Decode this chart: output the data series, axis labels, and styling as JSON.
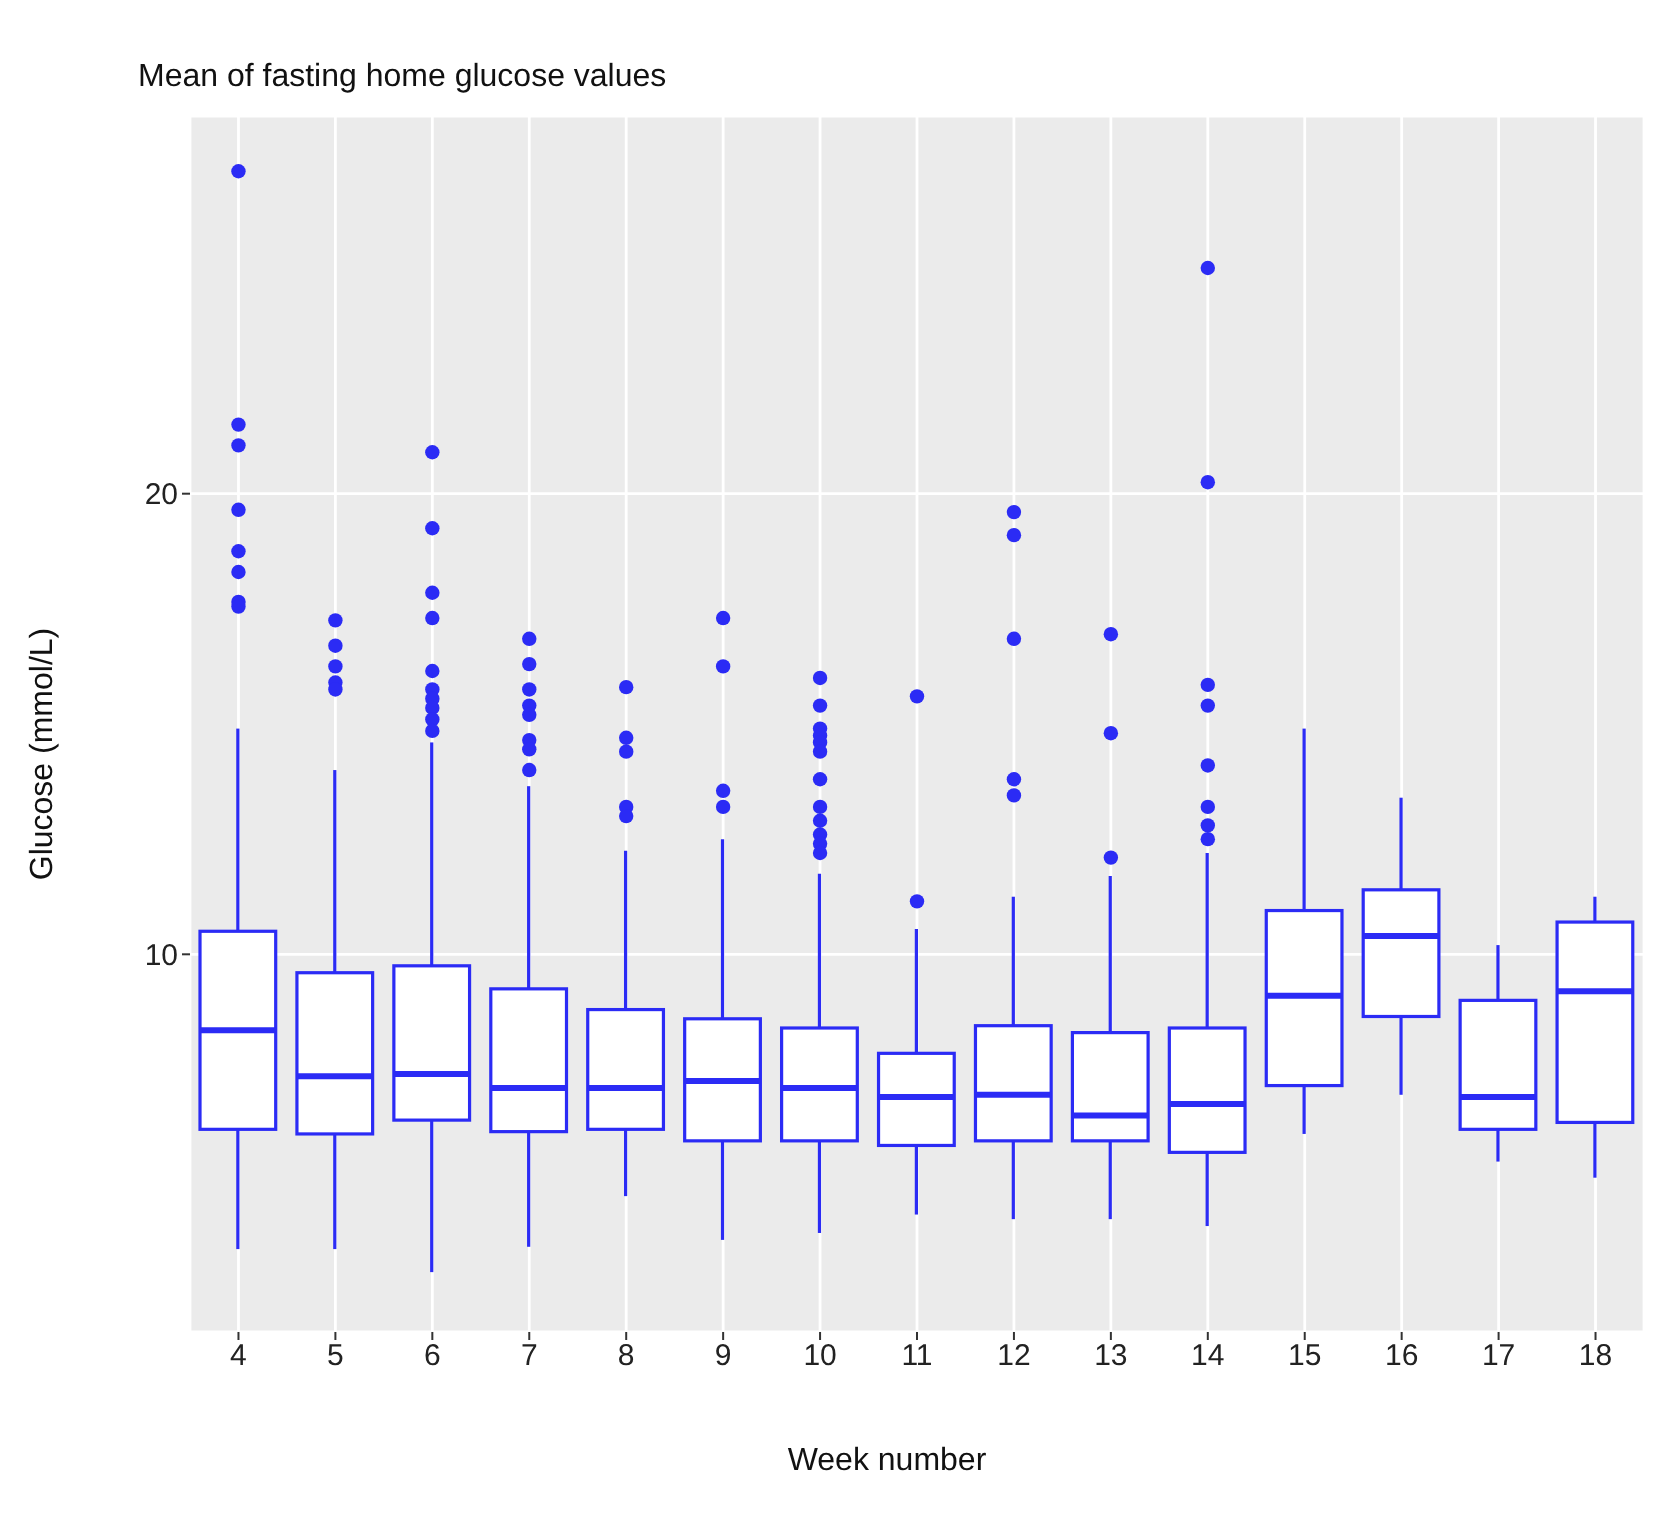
{
  "chart_data": {
    "type": "box",
    "title": "Mean of fasting home glucose values",
    "xlabel": "Week number",
    "ylabel": "Glucose (mmol/L)",
    "categories": [
      "4",
      "5",
      "6",
      "7",
      "8",
      "9",
      "10",
      "11",
      "12",
      "13",
      "14",
      "15",
      "16",
      "17",
      "18"
    ],
    "ylim": [
      1.8,
      28.2
    ],
    "yticks": [
      10,
      20
    ],
    "grid": true,
    "series": [
      {
        "color": "#2b2bf5",
        "boxes": [
          {
            "low": 3.6,
            "q1": 6.2,
            "median": 8.35,
            "q3": 10.5,
            "high": 14.9,
            "outliers": [
              27.0,
              21.5,
              21.05,
              19.65,
              18.75,
              18.3,
              17.65,
              17.55
            ]
          },
          {
            "low": 3.6,
            "q1": 6.1,
            "median": 7.35,
            "q3": 9.6,
            "high": 14.0,
            "outliers": [
              17.25,
              16.7,
              16.25,
              15.9,
              15.75
            ]
          },
          {
            "low": 3.1,
            "q1": 6.4,
            "median": 7.4,
            "q3": 9.75,
            "high": 14.6,
            "outliers": [
              20.9,
              19.25,
              17.85,
              17.3,
              16.15,
              15.75,
              15.55,
              15.35,
              15.1,
              14.85
            ]
          },
          {
            "low": 3.65,
            "q1": 6.15,
            "median": 7.1,
            "q3": 9.25,
            "high": 13.65,
            "outliers": [
              16.85,
              16.3,
              15.75,
              15.4,
              15.2,
              14.65,
              14.45,
              14.0
            ]
          },
          {
            "low": 4.75,
            "q1": 6.2,
            "median": 7.1,
            "q3": 8.8,
            "high": 12.25,
            "outliers": [
              15.8,
              14.7,
              14.4,
              13.2,
              13.0
            ]
          },
          {
            "low": 3.8,
            "q1": 5.95,
            "median": 7.25,
            "q3": 8.6,
            "high": 12.5,
            "outliers": [
              17.3,
              16.25,
              13.55,
              13.2
            ]
          },
          {
            "low": 3.95,
            "q1": 5.95,
            "median": 7.1,
            "q3": 8.4,
            "high": 11.75,
            "outliers": [
              16.0,
              15.4,
              14.9,
              14.75,
              14.6,
              14.4,
              13.8,
              13.2,
              12.9,
              12.6,
              12.4,
              12.2
            ]
          },
          {
            "low": 4.35,
            "q1": 5.85,
            "median": 6.9,
            "q3": 7.85,
            "high": 10.55,
            "outliers": [
              15.6,
              11.15
            ]
          },
          {
            "low": 4.25,
            "q1": 5.95,
            "median": 6.95,
            "q3": 8.45,
            "high": 11.25,
            "outliers": [
              19.6,
              19.1,
              16.85,
              13.8,
              13.45
            ]
          },
          {
            "low": 4.25,
            "q1": 5.95,
            "median": 6.5,
            "q3": 8.3,
            "high": 11.7,
            "outliers": [
              16.95,
              14.8,
              12.1
            ]
          },
          {
            "low": 4.1,
            "q1": 5.7,
            "median": 6.75,
            "q3": 8.4,
            "high": 12.2,
            "outliers": [
              24.9,
              20.25,
              15.85,
              15.4,
              14.1,
              13.2,
              12.8,
              12.5
            ]
          },
          {
            "low": 6.1,
            "q1": 7.15,
            "median": 9.1,
            "q3": 10.95,
            "high": 14.9
          },
          {
            "low": 6.95,
            "q1": 8.65,
            "median": 10.4,
            "q3": 11.4,
            "high": 13.4
          },
          {
            "low": 5.5,
            "q1": 6.2,
            "median": 6.9,
            "q3": 9.0,
            "high": 10.2
          },
          {
            "low": 5.15,
            "q1": 6.35,
            "median": 9.2,
            "q3": 10.7,
            "high": 11.25
          }
        ]
      }
    ]
  }
}
